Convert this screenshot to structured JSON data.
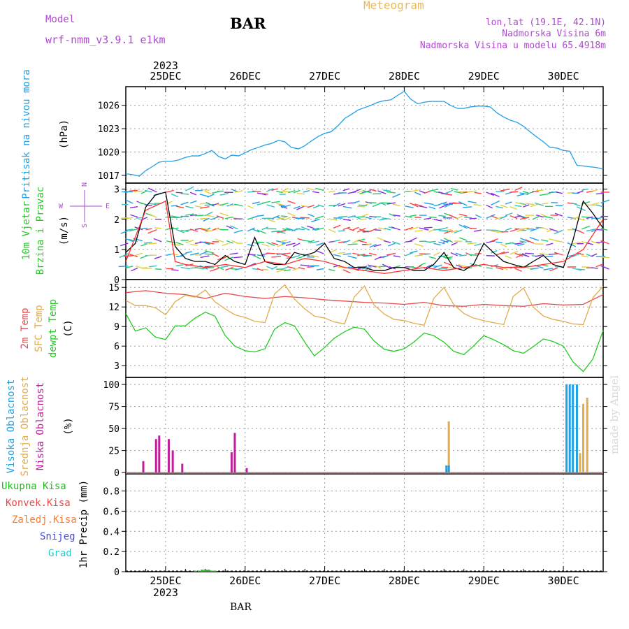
{
  "header": {
    "model_label": "Model",
    "model_name": "wrf-nmm_v3.9.1 e1km",
    "station": "BAR",
    "title": "Meteogram",
    "coords": "lon,lat (19.1E, 42.1N)",
    "elevation": "Nadmorska Visina 6m",
    "model_elevation": "Nadmorska Visina u modelu 65.4918m"
  },
  "footer": {
    "station": "BAR",
    "watermark": "made by Angel"
  },
  "colors": {
    "pressure": "#1fa0e6",
    "wind_speed": "#000000",
    "gust": "#ff3030",
    "temp2m": "#e64b4b",
    "sfc_temp": "#e3ab4a",
    "dewpt": "#22cc22",
    "cloud_high": "#1fa0e6",
    "cloud_mid": "#e3ab4a",
    "cloud_low": "#c0209a",
    "precip_total": "#22bb22",
    "precip_conv": "#e64b4b",
    "precip_frozen": "#ff7a2a",
    "snow": "#4a4adc",
    "hail": "#22cccc",
    "compass": "#b04ad0"
  },
  "chart_data": [
    {
      "type": "line",
      "panel": "pressure",
      "time_start": "2023-12-24T12:00",
      "time_end": "2023-12-30T12:00",
      "day_labels": [
        "25DEC",
        "26DEC",
        "27DEC",
        "28DEC",
        "29DEC",
        "30DEC"
      ],
      "year_label": "2023",
      "ylabels": [
        "Pritisak na nivou mora",
        "(hPa)"
      ],
      "yticks": [
        1017,
        1020,
        1023,
        1026
      ],
      "ylim": [
        1016,
        1028.4
      ],
      "grid": true,
      "series": [
        {
          "key": "pressure",
          "color_key": "pressure",
          "x": [
            0,
            0.08,
            0.17,
            0.25,
            0.33,
            0.42,
            0.5,
            0.58,
            0.67,
            0.75,
            0.83,
            0.92,
            1.0,
            1.08,
            1.17,
            1.25,
            1.33,
            1.42,
            1.5,
            1.58,
            1.67,
            1.75,
            1.83,
            1.92,
            2.0,
            2.08,
            2.17,
            2.25,
            2.33,
            2.42,
            2.5,
            2.58,
            2.67,
            2.75,
            2.83,
            2.92,
            3.0,
            3.08,
            3.17,
            3.25,
            3.33,
            3.42,
            3.5,
            3.58,
            3.67,
            3.75,
            3.83,
            3.92,
            4.0,
            4.08,
            4.17,
            4.25,
            4.33,
            4.42,
            4.5,
            4.58,
            4.67,
            4.75,
            4.83,
            4.92,
            5.0,
            5.08,
            5.17,
            5.25,
            5.33,
            5.42,
            5.5,
            5.58,
            5.67,
            5.75,
            5.83,
            5.92,
            6.0
          ],
          "values": [
            1017.2,
            1017.1,
            1016.9,
            1017.6,
            1018.1,
            1018.7,
            1018.8,
            1018.8,
            1019.0,
            1019.3,
            1019.5,
            1019.5,
            1019.8,
            1020.2,
            1019.4,
            1019.1,
            1019.6,
            1019.5,
            1019.9,
            1020.3,
            1020.6,
            1020.9,
            1021.1,
            1021.5,
            1021.3,
            1020.6,
            1020.4,
            1020.8,
            1021.4,
            1022.0,
            1022.4,
            1022.6,
            1023.4,
            1024.3,
            1024.8,
            1025.4,
            1025.7,
            1026.0,
            1026.4,
            1026.6,
            1026.7,
            1027.3,
            1027.8,
            1026.8,
            1026.2,
            1026.4,
            1026.5,
            1026.5,
            1026.5,
            1026.0,
            1025.6,
            1025.6,
            1025.8,
            1025.9,
            1025.9,
            1025.8,
            1025.0,
            1024.5,
            1024.1,
            1023.8,
            1023.3,
            1022.6,
            1021.9,
            1021.3,
            1020.6,
            1020.5,
            1020.2,
            1020.1,
            1018.3,
            1018.2,
            1018.1,
            1018.0,
            1017.8
          ]
        }
      ]
    },
    {
      "type": "line",
      "panel": "wind",
      "ylabels": [
        "10m Vjetar",
        "Brzina i Pravac",
        "(m/s)"
      ],
      "compass": [
        "N",
        "S",
        "W",
        "E"
      ],
      "yticks": [
        0,
        1,
        2,
        3
      ],
      "ylim": [
        0,
        3.2
      ],
      "grid": true,
      "series": [
        {
          "key": "wind_speed",
          "color_key": "wind_speed",
          "x": [
            0,
            0.12,
            0.25,
            0.37,
            0.5,
            0.62,
            0.75,
            0.87,
            1.0,
            1.12,
            1.25,
            1.37,
            1.5,
            1.62,
            1.75,
            1.87,
            2.0,
            2.12,
            2.25,
            2.37,
            2.5,
            2.62,
            2.75,
            2.87,
            3.0,
            3.12,
            3.25,
            3.37,
            3.5,
            3.62,
            3.75,
            3.87,
            4.0,
            4.12,
            4.25,
            4.37,
            4.5,
            4.62,
            4.75,
            4.87,
            5.0,
            5.12,
            5.25,
            5.37,
            5.5,
            5.62,
            5.75,
            5.87,
            6.0
          ],
          "values": [
            0.9,
            1.2,
            2.4,
            2.8,
            2.9,
            1.1,
            0.7,
            0.6,
            0.6,
            0.5,
            0.8,
            0.6,
            0.5,
            1.4,
            0.6,
            0.5,
            0.5,
            0.9,
            0.8,
            0.9,
            1.2,
            0.7,
            0.6,
            0.4,
            0.4,
            0.3,
            0.3,
            0.4,
            0.4,
            0.3,
            0.3,
            0.5,
            0.9,
            0.4,
            0.3,
            0.5,
            1.2,
            0.9,
            0.6,
            0.5,
            0.4,
            0.6,
            0.8,
            0.5,
            0.4,
            1.3,
            2.6,
            2.2,
            1.7
          ]
        },
        {
          "key": "gust",
          "color_key": "gust",
          "x": [
            0,
            0.25,
            0.5,
            0.62,
            0.75,
            1.0,
            1.25,
            1.5,
            1.75,
            2.0,
            2.25,
            2.5,
            2.75,
            3.0,
            3.25,
            3.5,
            3.75,
            4.0,
            4.25,
            4.5,
            4.75,
            5.0,
            5.25,
            5.5,
            5.75,
            6.0
          ],
          "values": [
            0.6,
            2.3,
            2.6,
            0.6,
            0.5,
            0.4,
            0.5,
            0.4,
            0.6,
            0.5,
            0.7,
            0.6,
            0.4,
            0.3,
            0.2,
            0.3,
            0.4,
            0.3,
            0.4,
            0.5,
            0.4,
            0.4,
            0.5,
            0.6,
            1.0,
            2.0
          ]
        }
      ]
    },
    {
      "type": "line",
      "panel": "temperature",
      "ylabels": [
        "2m Temp",
        "SFC Temp",
        "dewpt Temp",
        "(C)"
      ],
      "yticks": [
        3,
        6,
        9,
        12,
        15
      ],
      "ylim": [
        1.2,
        16.2
      ],
      "grid": true,
      "series": [
        {
          "key": "temp2m",
          "color_key": "temp2m",
          "x": [
            0,
            0.25,
            0.5,
            0.75,
            1.0,
            1.25,
            1.5,
            1.75,
            2.0,
            2.25,
            2.5,
            2.75,
            3.0,
            3.25,
            3.5,
            3.75,
            4.0,
            4.25,
            4.5,
            4.75,
            5.0,
            5.25,
            5.5,
            5.75,
            6.0
          ],
          "values": [
            14.2,
            14.5,
            14.1,
            13.9,
            13.3,
            14.1,
            13.6,
            13.3,
            13.6,
            13.4,
            13.1,
            12.9,
            12.7,
            12.6,
            12.4,
            12.7,
            12.2,
            12.1,
            12.4,
            12.2,
            12.1,
            12.5,
            12.3,
            12.4,
            13.9
          ]
        },
        {
          "key": "sfc_temp",
          "color_key": "sfc_temp",
          "x": [
            0,
            0.12,
            0.25,
            0.37,
            0.5,
            0.62,
            0.75,
            0.87,
            1.0,
            1.12,
            1.25,
            1.37,
            1.5,
            1.62,
            1.75,
            1.87,
            2.0,
            2.12,
            2.25,
            2.37,
            2.5,
            2.62,
            2.75,
            2.87,
            3.0,
            3.12,
            3.25,
            3.37,
            3.5,
            3.62,
            3.75,
            3.87,
            4.0,
            4.12,
            4.25,
            4.37,
            4.5,
            4.62,
            4.75,
            4.87,
            5.0,
            5.12,
            5.25,
            5.37,
            5.5,
            5.62,
            5.75,
            5.87,
            6.0
          ],
          "values": [
            13.0,
            12.2,
            12.2,
            11.9,
            10.8,
            12.8,
            13.8,
            13.5,
            14.6,
            12.8,
            11.7,
            10.8,
            10.4,
            9.8,
            9.6,
            14.0,
            15.4,
            13.2,
            11.7,
            10.6,
            10.3,
            9.7,
            9.4,
            13.5,
            15.2,
            12.3,
            10.9,
            10.1,
            9.9,
            9.5,
            9.2,
            13.3,
            15.0,
            12.4,
            11.0,
            10.3,
            9.9,
            9.6,
            9.3,
            13.6,
            14.9,
            12.0,
            10.6,
            10.1,
            9.8,
            9.4,
            9.3,
            13.4,
            15.2
          ]
        },
        {
          "key": "dewpt",
          "color_key": "dewpt",
          "x": [
            0,
            0.12,
            0.25,
            0.37,
            0.5,
            0.62,
            0.75,
            0.87,
            1.0,
            1.12,
            1.25,
            1.37,
            1.5,
            1.62,
            1.75,
            1.87,
            2.0,
            2.12,
            2.25,
            2.37,
            2.5,
            2.62,
            2.75,
            2.87,
            3.0,
            3.12,
            3.25,
            3.37,
            3.5,
            3.62,
            3.75,
            3.87,
            4.0,
            4.12,
            4.25,
            4.37,
            4.5,
            4.62,
            4.75,
            4.87,
            5.0,
            5.12,
            5.25,
            5.37,
            5.5,
            5.62,
            5.75,
            5.87,
            6.0
          ],
          "values": [
            11.0,
            8.3,
            8.8,
            7.4,
            7.0,
            9.1,
            9.1,
            10.3,
            11.2,
            10.6,
            7.6,
            6.0,
            5.3,
            5.1,
            5.6,
            8.6,
            9.6,
            9.1,
            6.6,
            4.5,
            5.8,
            7.2,
            8.2,
            8.9,
            8.6,
            6.8,
            5.5,
            5.2,
            5.6,
            6.6,
            8.0,
            7.6,
            6.6,
            5.2,
            4.7,
            6.0,
            7.6,
            7.0,
            6.2,
            5.3,
            4.9,
            5.9,
            7.1,
            6.7,
            6.0,
            3.6,
            2.1,
            4.0,
            8.4
          ]
        }
      ]
    },
    {
      "type": "bar",
      "panel": "clouds",
      "ylabels": [
        "Visoka Oblacnost",
        "Srednja Oblacnost",
        "Niska Oblacnost",
        "(%)"
      ],
      "yticks": [
        0,
        25,
        50,
        75,
        100
      ],
      "ylim": [
        -1.5,
        108
      ],
      "grid": true,
      "series": [
        {
          "key": "cloud_low",
          "color_key": "cloud_low",
          "x": [
            0.22,
            0.38,
            0.42,
            0.54,
            0.59,
            0.71,
            1.33,
            1.37,
            1.52
          ],
          "values": [
            13,
            38,
            42,
            38,
            25,
            10,
            23,
            45,
            5
          ]
        },
        {
          "key": "cloud_mid",
          "color_key": "cloud_mid",
          "x": [
            4.06,
            5.71,
            5.75,
            5.8
          ],
          "values": [
            58,
            22,
            78,
            85
          ]
        },
        {
          "key": "cloud_high",
          "color_key": "cloud_high",
          "x": [
            4.03,
            4.06,
            5.54,
            5.58,
            5.62,
            5.67
          ],
          "values": [
            8,
            8,
            100,
            100,
            100,
            100
          ]
        }
      ]
    },
    {
      "type": "bar",
      "panel": "precipitation",
      "ylabels": [
        "1hr Precip (mm)"
      ],
      "legend": [
        "Ukupna Kisa",
        "Konvek.Kisa",
        "Zaledj.Kisa",
        "Snijeg",
        "Grad"
      ],
      "yticks": [
        0,
        0.2,
        0.4,
        0.6,
        0.8
      ],
      "ylim": [
        0,
        0.97
      ],
      "grid": true,
      "series": [
        {
          "key": "precip_total",
          "color_key": "precip_total",
          "x": [
            0.87,
            0.92,
            0.96,
            1.0,
            1.04,
            1.08,
            1.12
          ],
          "values": [
            0.01,
            0.01,
            0.02,
            0.02,
            0.02,
            0.01,
            0.01
          ]
        }
      ]
    }
  ]
}
